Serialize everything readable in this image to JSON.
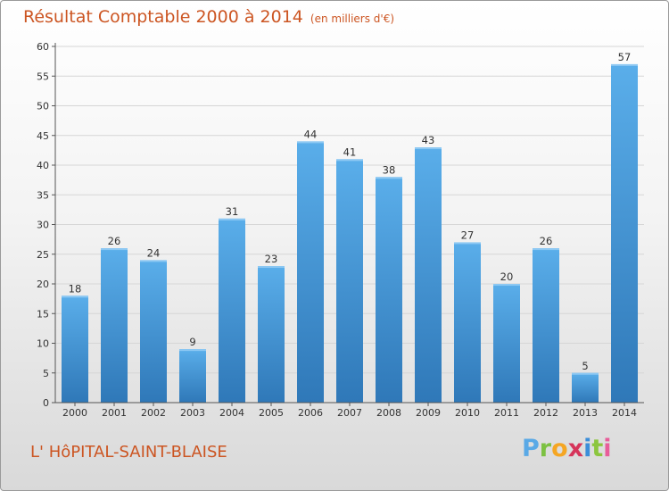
{
  "chart_data": {
    "type": "bar",
    "title": "Résultat Comptable 2000 à 2014",
    "subtitle": "(en milliers d'€)",
    "categories": [
      "2000",
      "2001",
      "2002",
      "2003",
      "2004",
      "2005",
      "2006",
      "2007",
      "2008",
      "2009",
      "2010",
      "2011",
      "2012",
      "2013",
      "2014"
    ],
    "values": [
      18,
      26,
      24,
      9,
      31,
      23,
      44,
      41,
      38,
      43,
      27,
      20,
      26,
      5,
      57
    ],
    "ylim": [
      0,
      60
    ],
    "yticks": [
      0,
      5,
      10,
      15,
      20,
      25,
      30,
      35,
      40,
      45,
      50,
      55,
      60
    ],
    "grid": true,
    "bar_color": "#3d8fd0"
  },
  "footer": {
    "commune": "L' HôPITAL-SAINT-BLAISE",
    "logo_letters": [
      "P",
      "r",
      "o",
      "x",
      "i",
      "t",
      "i"
    ]
  }
}
